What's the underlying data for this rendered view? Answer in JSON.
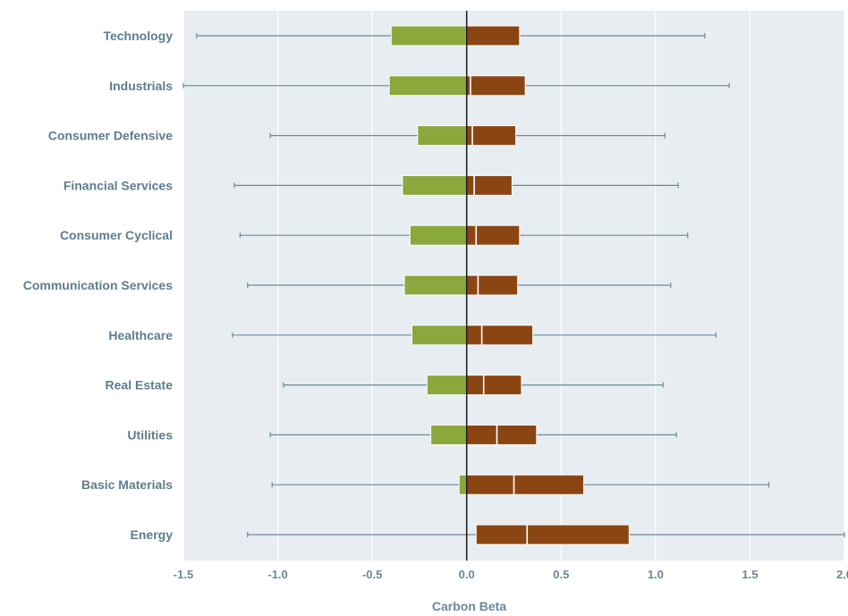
{
  "colors": {
    "plot_background": "#e8edf1",
    "grid": "#ffffff",
    "whisker": "#6b8a99",
    "negative_box": "#8aa83c",
    "positive_box": "#8b4513",
    "zero_line": "#1a1a1a",
    "label_text": "#5e7d8c"
  },
  "chart_data": {
    "type": "boxplot",
    "orientation": "horizontal",
    "xlabel": "Carbon Beta",
    "ylabel": "",
    "title": "",
    "xlim": [
      -1.5,
      2.0
    ],
    "xticks": [
      "-1.5",
      "-1.0",
      "-0.5",
      "0.0",
      "0.5",
      "1.0",
      "1.5",
      "2.0"
    ],
    "grid": true,
    "legend": "none",
    "categories": [
      "Technology",
      "Industrials",
      "Consumer Defensive",
      "Financial Services",
      "Consumer Cyclical",
      "Communication Services",
      "Healthcare",
      "Real Estate",
      "Utilities",
      "Basic Materials",
      "Energy"
    ],
    "boxes": [
      {
        "category": "Technology",
        "whisker_low": -1.43,
        "q1": -0.4,
        "median": 0.0,
        "q3": 0.28,
        "whisker_high": 1.26
      },
      {
        "category": "Industrials",
        "whisker_low": -1.5,
        "q1": -0.41,
        "median": 0.02,
        "q3": 0.31,
        "whisker_high": 1.39
      },
      {
        "category": "Consumer Defensive",
        "whisker_low": -1.04,
        "q1": -0.26,
        "median": 0.03,
        "q3": 0.26,
        "whisker_high": 1.05
      },
      {
        "category": "Financial Services",
        "whisker_low": -1.23,
        "q1": -0.34,
        "median": 0.04,
        "q3": 0.24,
        "whisker_high": 1.12
      },
      {
        "category": "Consumer Cyclical",
        "whisker_low": -1.2,
        "q1": -0.3,
        "median": 0.05,
        "q3": 0.28,
        "whisker_high": 1.17
      },
      {
        "category": "Communication Services",
        "whisker_low": -1.16,
        "q1": -0.33,
        "median": 0.06,
        "q3": 0.27,
        "whisker_high": 1.08
      },
      {
        "category": "Healthcare",
        "whisker_low": -1.24,
        "q1": -0.29,
        "median": 0.08,
        "q3": 0.35,
        "whisker_high": 1.32
      },
      {
        "category": "Real Estate",
        "whisker_low": -0.97,
        "q1": -0.21,
        "median": 0.09,
        "q3": 0.29,
        "whisker_high": 1.04
      },
      {
        "category": "Utilities",
        "whisker_low": -1.04,
        "q1": -0.19,
        "median": 0.16,
        "q3": 0.37,
        "whisker_high": 1.11
      },
      {
        "category": "Basic Materials",
        "whisker_low": -1.03,
        "q1": -0.04,
        "median": 0.25,
        "q3": 0.62,
        "whisker_high": 1.6
      },
      {
        "category": "Energy",
        "whisker_low": -1.16,
        "q1": 0.05,
        "median": 0.32,
        "q3": 0.86,
        "whisker_high": 2.05
      }
    ]
  }
}
